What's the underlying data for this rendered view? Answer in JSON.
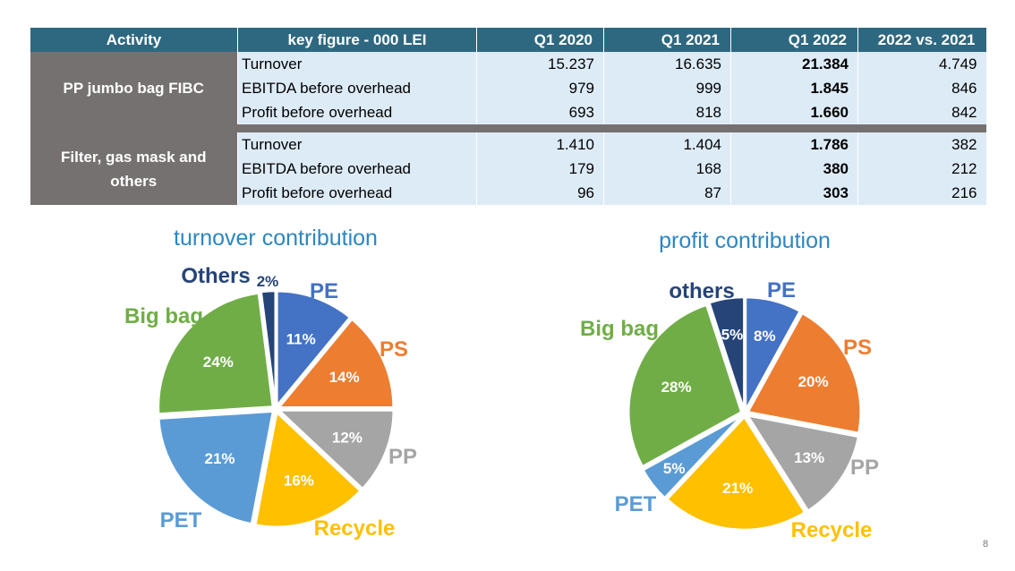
{
  "table": {
    "headers": [
      "Activity",
      "key figure - 000 LEI",
      "Q1 2020",
      "Q1 2021",
      "Q1 2022",
      "2022 vs. 2021"
    ],
    "groups": [
      {
        "name": "PP jumbo bag FIBC",
        "rows": [
          {
            "metric": "Turnover",
            "q1_2020": "15.237",
            "q1_2021": "16.635",
            "q1_2022": "21.384",
            "diff": "4.749"
          },
          {
            "metric": "EBITDA before overhead",
            "q1_2020": "979",
            "q1_2021": "999",
            "q1_2022": "1.845",
            "diff": "846"
          },
          {
            "metric": "Profit before overhead",
            "q1_2020": "693",
            "q1_2021": "818",
            "q1_2022": "1.660",
            "diff": "842"
          }
        ]
      },
      {
        "name": "Filter, gas mask and others",
        "rows": [
          {
            "metric": "Turnover",
            "q1_2020": "1.410",
            "q1_2021": "1.404",
            "q1_2022": "1.786",
            "diff": "382"
          },
          {
            "metric": "EBITDA before overhead",
            "q1_2020": "179",
            "q1_2021": "168",
            "q1_2022": "380",
            "diff": "212"
          },
          {
            "metric": "Profit before overhead",
            "q1_2020": "96",
            "q1_2021": "87",
            "q1_2022": "303",
            "diff": "216"
          }
        ]
      }
    ]
  },
  "chart_data": [
    {
      "type": "pie",
      "title": "turnover contribution",
      "slices": [
        {
          "label": "PE",
          "value": 11,
          "value_label": "11%",
          "color": "#4472c4"
        },
        {
          "label": "PS",
          "value": 14,
          "value_label": "14%",
          "color": "#ed7d31"
        },
        {
          "label": "PP",
          "value": 12,
          "value_label": "12%",
          "color": "#a5a5a5"
        },
        {
          "label": "Recycle",
          "value": 16,
          "value_label": "16%",
          "color": "#ffc000"
        },
        {
          "label": "PET",
          "value": 21,
          "value_label": "21%",
          "color": "#5b9bd5"
        },
        {
          "label": "Big bag",
          "value": 24,
          "value_label": "24%",
          "color": "#70ad47"
        },
        {
          "label": "Others",
          "value": 2,
          "value_label": "2%",
          "color": "#264478"
        }
      ]
    },
    {
      "type": "pie",
      "title": "profit contribution",
      "slices": [
        {
          "label": "PE",
          "value": 8,
          "value_label": "8%",
          "color": "#4472c4"
        },
        {
          "label": "PS",
          "value": 20,
          "value_label": "20%",
          "color": "#ed7d31"
        },
        {
          "label": "PP",
          "value": 13,
          "value_label": "13%",
          "color": "#a5a5a5"
        },
        {
          "label": "Recycle",
          "value": 21,
          "value_label": "21%",
          "color": "#ffc000"
        },
        {
          "label": "PET",
          "value": 5,
          "value_label": "5%",
          "color": "#5b9bd5"
        },
        {
          "label": "Big bag",
          "value": 28,
          "value_label": "28%",
          "color": "#70ad47"
        },
        {
          "label": "others",
          "value": 5,
          "value_label": "5%",
          "color": "#264478"
        }
      ]
    }
  ],
  "page_number": "8"
}
